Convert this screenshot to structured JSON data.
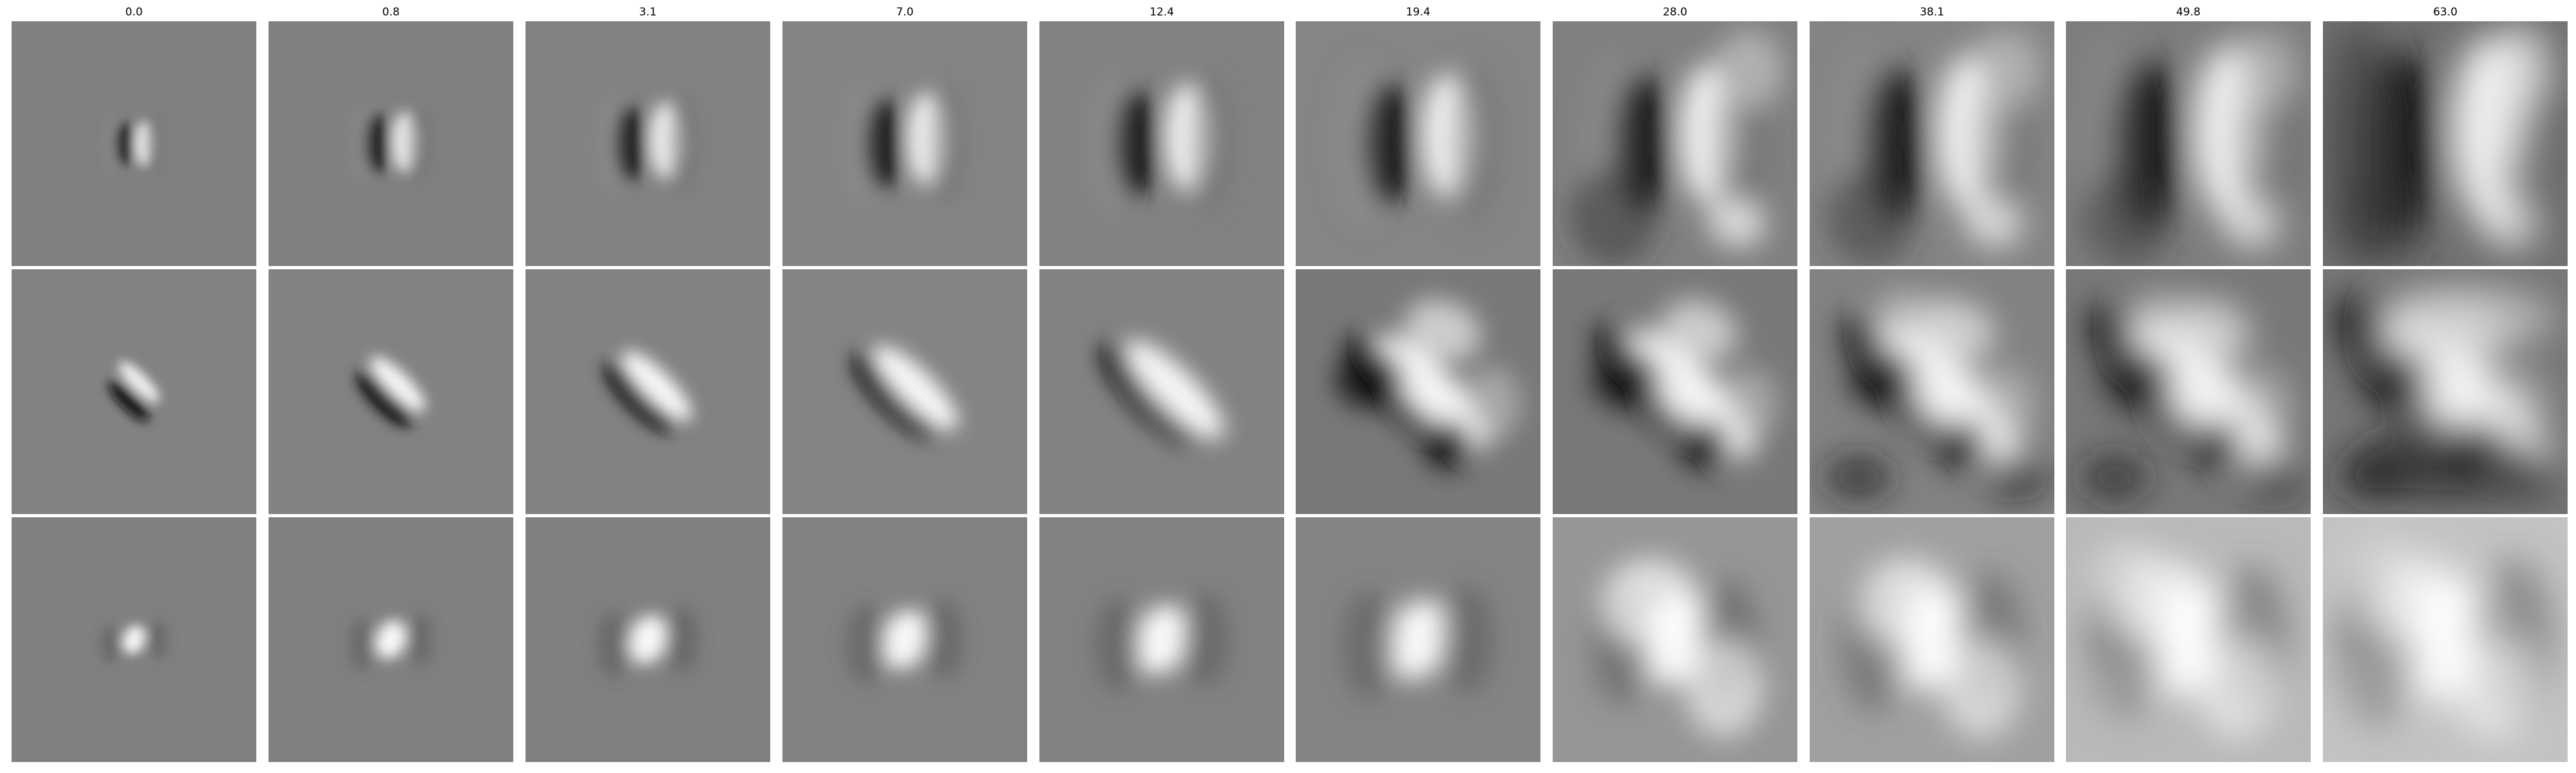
{
  "figure": {
    "column_titles": [
      "0.0",
      "0.8",
      "3.1",
      "7.0",
      "12.4",
      "19.4",
      "28.0",
      "38.1",
      "49.8",
      "63.0"
    ],
    "rows": [
      {
        "description_tone": "dark-left bright-right vertical dipole",
        "base_gray": [
          128,
          128,
          130,
          132,
          130,
          133,
          128,
          132,
          125,
          112
        ]
      },
      {
        "description_tone": "diagonal dark/bright band, upper-left to lower-right",
        "base_gray": [
          130,
          130,
          130,
          132,
          130,
          120,
          120,
          130,
          120,
          118
        ]
      },
      {
        "description_tone": "bright central blob",
        "base_gray": [
          128,
          128,
          128,
          130,
          130,
          132,
          150,
          160,
          185,
          195
        ]
      }
    ]
  }
}
